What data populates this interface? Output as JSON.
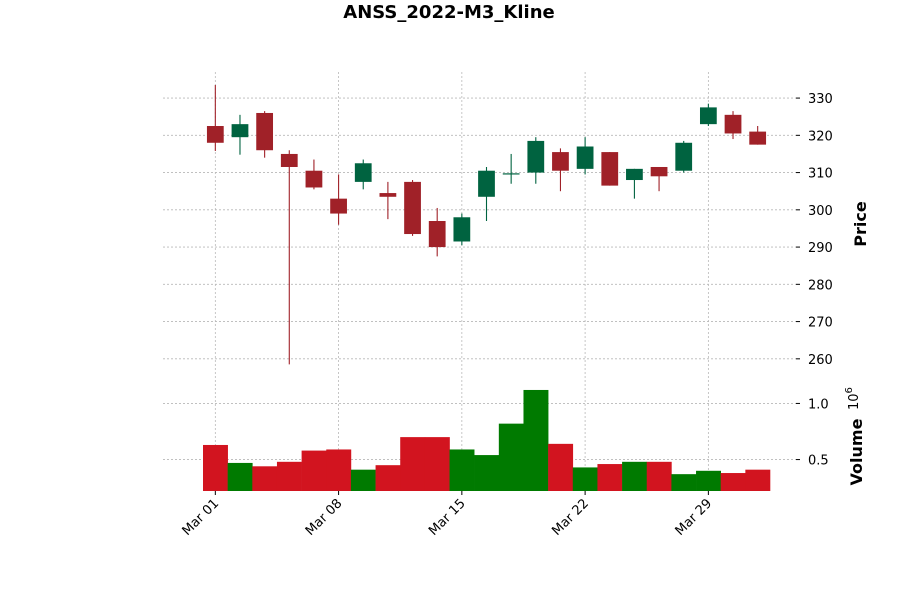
{
  "chart_data": {
    "type": "candlestick",
    "title": "ANSS_2022-M3_Kline",
    "ylabel_price": "Price",
    "ylabel_volume": "Volume",
    "volume_exponent_label": "10",
    "volume_exponent_power": "6",
    "price_ylim": [
      257,
      337
    ],
    "price_ticks": [
      "330",
      "320",
      "310",
      "300",
      "290",
      "280",
      "270",
      "260"
    ],
    "price_tick_values": [
      330,
      320,
      310,
      300,
      290,
      280,
      270,
      260
    ],
    "volume_ylim": [
      0.22,
      1.28
    ],
    "volume_ticks": [
      "1.0",
      "0.5"
    ],
    "volume_tick_values": [
      1.0,
      0.5
    ],
    "x_ticks": [
      "Mar 01",
      "Mar 08",
      "Mar 15",
      "Mar 22",
      "Mar 29"
    ],
    "x_tick_index": [
      0,
      5,
      10,
      15,
      20
    ],
    "colors": {
      "up_candle": "#006340",
      "down_candle": "#a02128",
      "up_volume": "#007a00",
      "down_volume": "#d2141f",
      "grid": "#b8b8b8"
    },
    "candles": [
      {
        "open": 322.5,
        "high": 333.5,
        "low": 315.8,
        "close": 318.0
      },
      {
        "open": 319.5,
        "high": 325.5,
        "low": 314.8,
        "close": 323.0
      },
      {
        "open": 326.0,
        "high": 326.5,
        "low": 314.0,
        "close": 316.0
      },
      {
        "open": 315.0,
        "high": 316.0,
        "low": 258.5,
        "close": 311.5
      },
      {
        "open": 310.5,
        "high": 313.5,
        "low": 305.5,
        "close": 306.0
      },
      {
        "open": 303.0,
        "high": 309.5,
        "low": 296.0,
        "close": 299.0
      },
      {
        "open": 307.5,
        "high": 313.5,
        "low": 305.5,
        "close": 312.5
      },
      {
        "open": 304.5,
        "high": 307.5,
        "low": 297.5,
        "close": 303.5
      },
      {
        "open": 307.5,
        "high": 308.0,
        "low": 293.0,
        "close": 293.5
      },
      {
        "open": 297.0,
        "high": 300.5,
        "low": 287.5,
        "close": 290.0
      },
      {
        "open": 291.5,
        "high": 299.0,
        "low": 290.5,
        "close": 298.0
      },
      {
        "open": 303.5,
        "high": 311.5,
        "low": 297.0,
        "close": 310.5
      },
      {
        "open": 309.5,
        "high": 315.0,
        "low": 307.0,
        "close": 309.8
      },
      {
        "open": 310.0,
        "high": 319.5,
        "low": 307.0,
        "close": 318.5
      },
      {
        "open": 315.5,
        "high": 316.5,
        "low": 305.0,
        "close": 310.5
      },
      {
        "open": 311.0,
        "high": 319.5,
        "low": 309.5,
        "close": 317.0
      },
      {
        "open": 315.5,
        "high": 315.5,
        "low": 306.5,
        "close": 306.5
      },
      {
        "open": 308.0,
        "high": 311.0,
        "low": 303.0,
        "close": 311.0
      },
      {
        "open": 311.5,
        "high": 311.5,
        "low": 305.0,
        "close": 309.0
      },
      {
        "open": 310.5,
        "high": 318.5,
        "low": 310.0,
        "close": 318.0
      },
      {
        "open": 323.0,
        "high": 328.5,
        "low": 322.5,
        "close": 327.5
      },
      {
        "open": 325.5,
        "high": 326.5,
        "low": 319.0,
        "close": 320.5
      },
      {
        "open": 321.0,
        "high": 322.5,
        "low": 317.5,
        "close": 317.5
      }
    ],
    "volumes": [
      0.63,
      0.47,
      0.44,
      0.48,
      0.58,
      0.59,
      0.41,
      0.45,
      0.7,
      0.7,
      0.59,
      0.54,
      0.82,
      1.12,
      0.64,
      0.43,
      0.46,
      0.48,
      0.48,
      0.37,
      0.4,
      0.38,
      0.41
    ]
  }
}
